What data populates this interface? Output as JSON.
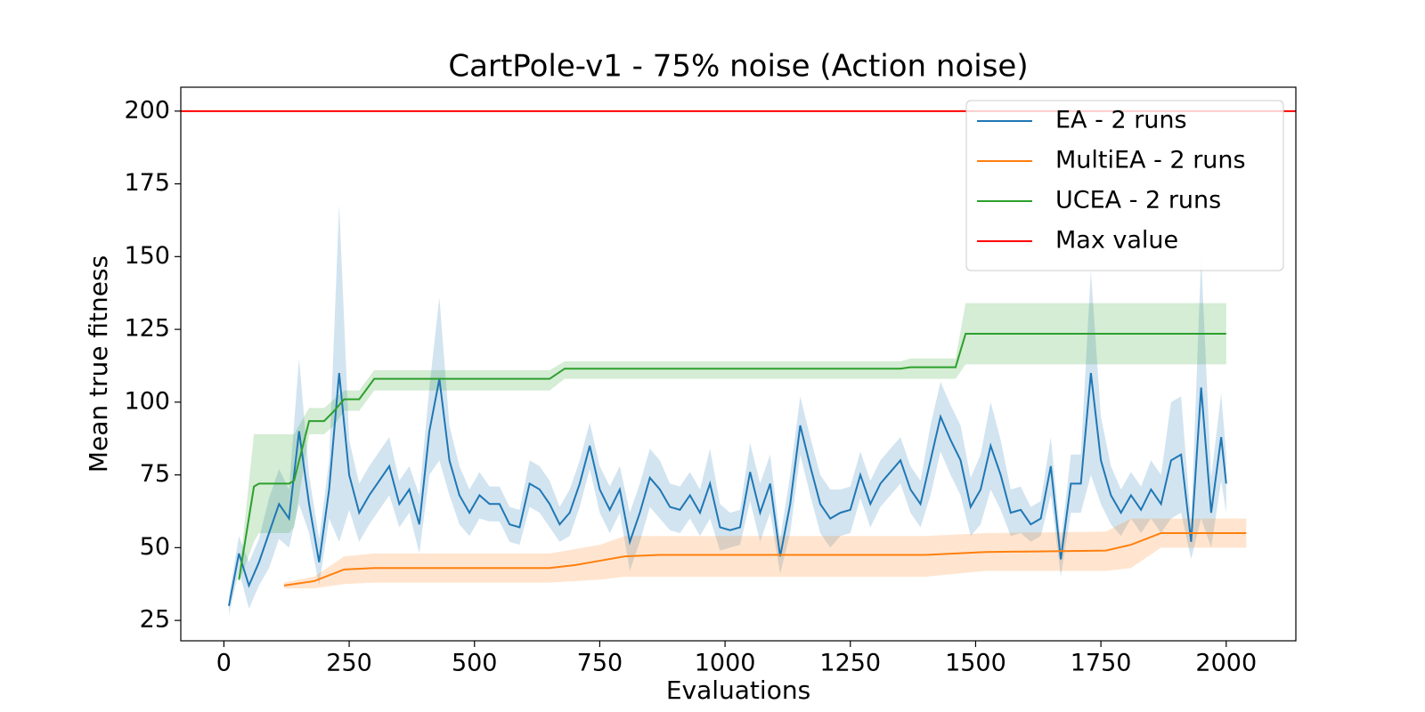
{
  "chart_data": {
    "type": "line",
    "title": "CartPole-v1 - 75% noise (Action noise)",
    "xlabel": "Evaluations",
    "ylabel": "Mean true fitness",
    "xlim": [
      -86,
      2139
    ],
    "ylim": [
      18,
      208.2
    ],
    "xticks": [
      0,
      250,
      500,
      750,
      1000,
      1250,
      1500,
      1750,
      2000
    ],
    "yticks": [
      25,
      50,
      75,
      100,
      125,
      150,
      175,
      200
    ],
    "legend": "upper right",
    "series": [
      {
        "name": "EA - 2 runs",
        "color": "#1f77b4",
        "x": [
          10,
          30,
          50,
          70,
          90,
          110,
          130,
          150,
          170,
          190,
          210,
          230,
          250,
          270,
          290,
          310,
          330,
          350,
          370,
          390,
          410,
          430,
          450,
          470,
          490,
          510,
          530,
          550,
          570,
          590,
          610,
          630,
          650,
          670,
          690,
          710,
          730,
          750,
          770,
          790,
          810,
          830,
          850,
          870,
          890,
          910,
          930,
          950,
          970,
          990,
          1010,
          1030,
          1050,
          1070,
          1090,
          1110,
          1130,
          1150,
          1170,
          1190,
          1210,
          1230,
          1250,
          1270,
          1290,
          1310,
          1330,
          1350,
          1370,
          1390,
          1410,
          1430,
          1450,
          1470,
          1490,
          1510,
          1530,
          1550,
          1570,
          1590,
          1610,
          1630,
          1650,
          1670,
          1690,
          1710,
          1730,
          1750,
          1770,
          1790,
          1810,
          1830,
          1850,
          1870,
          1890,
          1910,
          1930,
          1950,
          1970,
          1990,
          2000
        ],
        "values": [
          30,
          48,
          37,
          45,
          55,
          65,
          60,
          90,
          65,
          45,
          70,
          110,
          75,
          62,
          68,
          73,
          78,
          65,
          70,
          58,
          90,
          108,
          80,
          68,
          62,
          68,
          65,
          65,
          58,
          57,
          72,
          70,
          65,
          58,
          62,
          72,
          85,
          70,
          63,
          70,
          52,
          62,
          74,
          70,
          64,
          63,
          68,
          62,
          72,
          57,
          56,
          57,
          76,
          62,
          72,
          47,
          65,
          92,
          78,
          65,
          60,
          62,
          63,
          75,
          65,
          72,
          76,
          80,
          70,
          65,
          80,
          95,
          87,
          80,
          64,
          70,
          85,
          75,
          62,
          63,
          58,
          60,
          78,
          46,
          72,
          72,
          110,
          80,
          68,
          62,
          68,
          63,
          70,
          65,
          80,
          82,
          52,
          105,
          62,
          88,
          72
        ],
        "lower": [
          27,
          42,
          29,
          37,
          43,
          53,
          50,
          65,
          55,
          37,
          60,
          52,
          63,
          52,
          58,
          63,
          68,
          57,
          62,
          48,
          75,
          80,
          68,
          58,
          54,
          60,
          59,
          59,
          52,
          51,
          64,
          62,
          57,
          52,
          54,
          64,
          77,
          62,
          55,
          62,
          42,
          52,
          64,
          60,
          56,
          55,
          60,
          54,
          60,
          49,
          50,
          51,
          66,
          52,
          62,
          41,
          55,
          82,
          68,
          55,
          50,
          54,
          55,
          67,
          57,
          64,
          68,
          72,
          62,
          57,
          68,
          83,
          75,
          68,
          54,
          58,
          70,
          63,
          54,
          55,
          52,
          54,
          68,
          40,
          62,
          62,
          75,
          65,
          58,
          54,
          60,
          55,
          60,
          55,
          60,
          62,
          46,
          60,
          50,
          73,
          62
        ],
        "upper": [
          33,
          54,
          45,
          53,
          67,
          77,
          70,
          115,
          75,
          53,
          80,
          168,
          87,
          72,
          78,
          83,
          88,
          73,
          78,
          68,
          105,
          136,
          92,
          78,
          70,
          76,
          71,
          71,
          64,
          63,
          80,
          78,
          73,
          64,
          70,
          80,
          93,
          78,
          71,
          78,
          62,
          72,
          84,
          80,
          72,
          71,
          76,
          70,
          84,
          65,
          62,
          63,
          86,
          72,
          82,
          53,
          75,
          102,
          88,
          75,
          70,
          70,
          71,
          83,
          73,
          80,
          84,
          88,
          78,
          73,
          92,
          107,
          99,
          92,
          74,
          82,
          100,
          87,
          70,
          71,
          64,
          66,
          88,
          52,
          82,
          82,
          145,
          95,
          78,
          70,
          76,
          71,
          80,
          75,
          100,
          102,
          58,
          150,
          74,
          103,
          82
        ]
      },
      {
        "name": "MultiEA - 2 runs",
        "color": "#ff7f0e",
        "x": [
          120,
          180,
          240,
          300,
          650,
          700,
          750,
          800,
          870,
          1400,
          1460,
          1520,
          1760,
          1810,
          1870,
          2040
        ],
        "values": [
          37,
          38.5,
          42.5,
          43,
          43,
          44,
          45.5,
          47,
          47.5,
          47.5,
          48,
          48.5,
          49,
          51,
          55,
          55
        ],
        "lower": [
          36,
          36,
          37.5,
          38,
          38,
          38.5,
          39,
          40,
          40,
          40,
          41,
          42,
          42,
          43,
          50,
          50
        ],
        "upper": [
          38,
          40,
          47,
          48,
          48,
          49.5,
          51,
          54,
          54,
          54,
          54.5,
          55,
          55.5,
          60,
          60,
          60
        ]
      },
      {
        "name": "UCEA - 2 runs",
        "color": "#2ca02c",
        "x": [
          30,
          60,
          70,
          130,
          140,
          170,
          200,
          220,
          240,
          270,
          300,
          650,
          680,
          1350,
          1370,
          1460,
          1480,
          2000
        ],
        "values": [
          39,
          71,
          72,
          72,
          73,
          93.5,
          93.5,
          97,
          101,
          101,
          108,
          108,
          111.5,
          111.5,
          112,
          112,
          123.5,
          123.5
        ],
        "lower": [
          38,
          52,
          55,
          55,
          57,
          89,
          89,
          92,
          97,
          97,
          104,
          104,
          108,
          108,
          108,
          108,
          113,
          113
        ],
        "upper": [
          40,
          89,
          89,
          89,
          89,
          98,
          98,
          101,
          104,
          104,
          111,
          111,
          114,
          114,
          115,
          115,
          134,
          134
        ]
      },
      {
        "name": "Max value",
        "color": "#ff0000",
        "y": 200
      }
    ]
  }
}
